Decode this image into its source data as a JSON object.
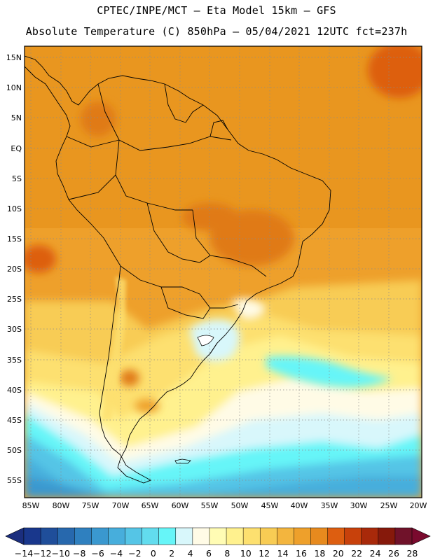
{
  "header": {
    "line1": "CPTEC/INPE/MCT –  Eta Model 15km – GFS",
    "line2": "Absolute Temperature (C) 850hPa – 05/04/2021 12UTC fct=237h"
  },
  "map": {
    "lat_labels": [
      "15N",
      "10N",
      "5N",
      "EQ",
      "5S",
      "10S",
      "15S",
      "20S",
      "25S",
      "30S",
      "35S",
      "40S",
      "45S",
      "50S",
      "55S"
    ],
    "lon_labels": [
      "85W",
      "80W",
      "75W",
      "70W",
      "65W",
      "60W",
      "55W",
      "50W",
      "45W",
      "40W",
      "35W",
      "30W",
      "25W",
      "20W"
    ]
  },
  "colorbar": {
    "labels": [
      "−14",
      "−12",
      "−10",
      "−8",
      "−6",
      "−4",
      "−2",
      "0",
      "2",
      "4",
      "6",
      "8",
      "10",
      "12",
      "14",
      "16",
      "18",
      "20",
      "22",
      "24",
      "26",
      "28"
    ],
    "colors": [
      "#19378c",
      "#1f4e9a",
      "#2768ad",
      "#2f80bf",
      "#3a98cf",
      "#47aedc",
      "#55c5e6",
      "#62dcee",
      "#66f5f8",
      "#d8f7fb",
      "#fffbe6",
      "#fffcb4",
      "#fff18e",
      "#fde06f",
      "#f8cc54",
      "#f3b53e",
      "#eea02b",
      "#e78a1e",
      "#dd5e10",
      "#c8410b",
      "#a8290a",
      "#86190b",
      "#70122a"
    ],
    "end_left_color": "#1b2e7e",
    "end_right_color": "#7a0a2e"
  }
}
